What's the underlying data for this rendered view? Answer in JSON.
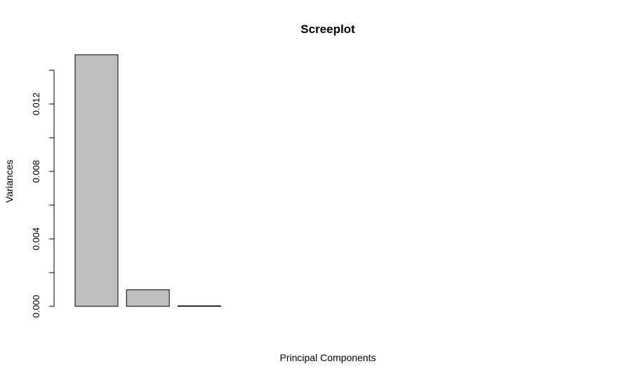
{
  "chart_data": {
    "type": "bar",
    "title": "Screeplot",
    "xlabel": "Principal Components",
    "ylabel": "Variances",
    "categories": [
      "",
      "",
      "",
      "",
      "",
      "",
      "",
      "",
      "",
      ""
    ],
    "values": [
      0.01492,
      0.00098,
      3e-05,
      0.0,
      0.0,
      0.0,
      0.0,
      0.0,
      0.0,
      0.0
    ],
    "ylim": [
      0,
      0.014
    ],
    "yticks": [
      0.0,
      0.002,
      0.004,
      0.006,
      0.008,
      0.01,
      0.012,
      0.014
    ],
    "ytick_labels": [
      "0.000",
      "",
      "0.004",
      "",
      "0.008",
      "",
      "0.012",
      ""
    ],
    "bar_color": "#bebebe",
    "grid": false,
    "legend": "none"
  }
}
